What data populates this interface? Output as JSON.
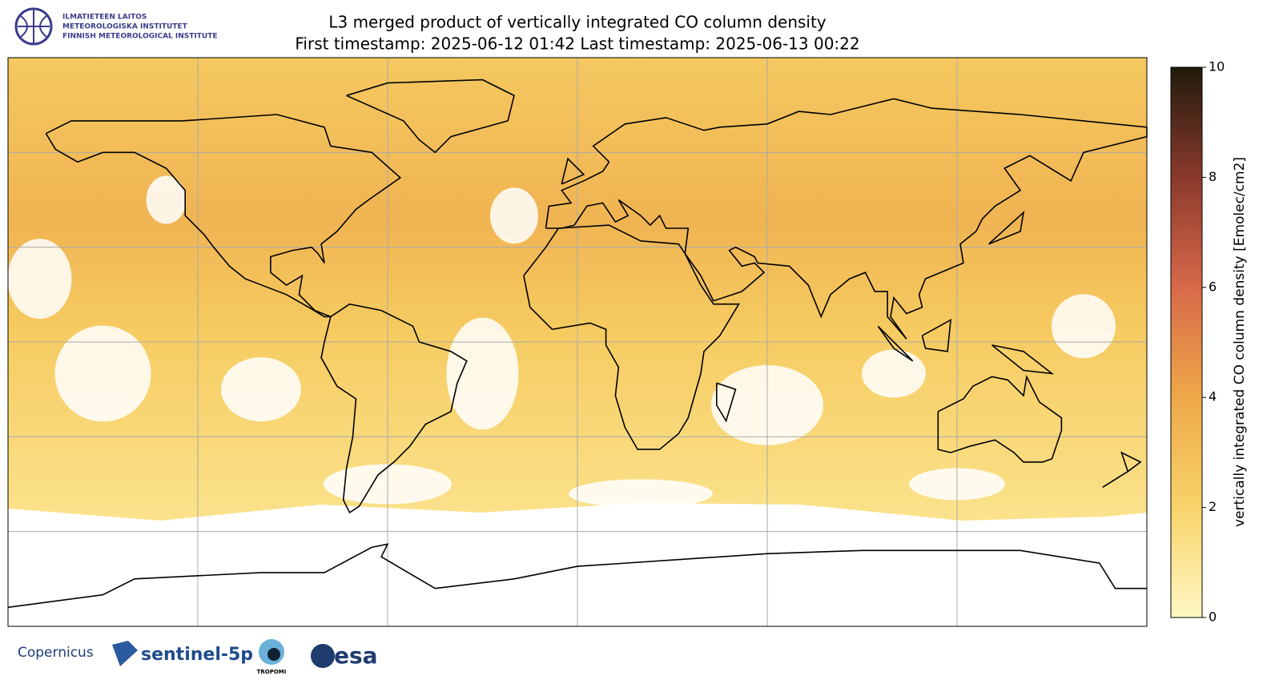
{
  "header": {
    "institute_lines": [
      "ILMATIETEEN LAITOS",
      "METEOROLOGISKA INSTITUTET",
      "FINNISH METEOROLOGICAL INSTITUTE"
    ],
    "title_lines": [
      "L3 merged product of vertically integrated CO column density",
      "First timestamp: 2025-06-12 01:42   Last timestamp: 2025-06-13 00:22"
    ]
  },
  "colorbar": {
    "label": "vertically integrated CO column density [Emolec/cm2]",
    "lim": [
      0,
      10
    ],
    "ticks": [
      0,
      2,
      4,
      6,
      8,
      10
    ],
    "colors": [
      "#fff8c4",
      "#f7d36a",
      "#eea848",
      "#d8694a",
      "#8a3a2c",
      "#201a0c"
    ]
  },
  "footer": {
    "logos": [
      "Copernicus",
      "sentinel-5p",
      "TROPOMI",
      "esa"
    ]
  }
}
